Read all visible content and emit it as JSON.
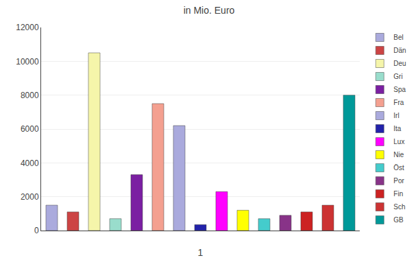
{
  "chart_data": {
    "type": "bar",
    "title": "in Mio. Euro",
    "x_label": "1",
    "categories": [
      "Bel",
      "Dän",
      "Deu",
      "Gri",
      "Spa",
      "Fra",
      "Irl",
      "Ita",
      "Lux",
      "Nie",
      "Öst",
      "Por",
      "Fin",
      "Sch",
      "GB"
    ],
    "values": [
      1500,
      1100,
      10500,
      700,
      3300,
      7500,
      6200,
      350,
      2300,
      1200,
      700,
      900,
      1100,
      1500,
      8000
    ],
    "colors": [
      "#aaaadd",
      "#cc4444",
      "#f5f5aa",
      "#99ddcc",
      "#7b1fa2",
      "#f4a090",
      "#aaaadd",
      "#2222aa",
      "#ff00ff",
      "#ffff00",
      "#44cccc",
      "#883388",
      "#cc2222",
      "#cc3333",
      "#009999"
    ],
    "ylim": [
      0,
      12000
    ],
    "yticks": [
      0,
      2000,
      4000,
      6000,
      8000,
      10000,
      12000
    ],
    "grid": true,
    "legend": "right",
    "tick_labels": "y"
  }
}
